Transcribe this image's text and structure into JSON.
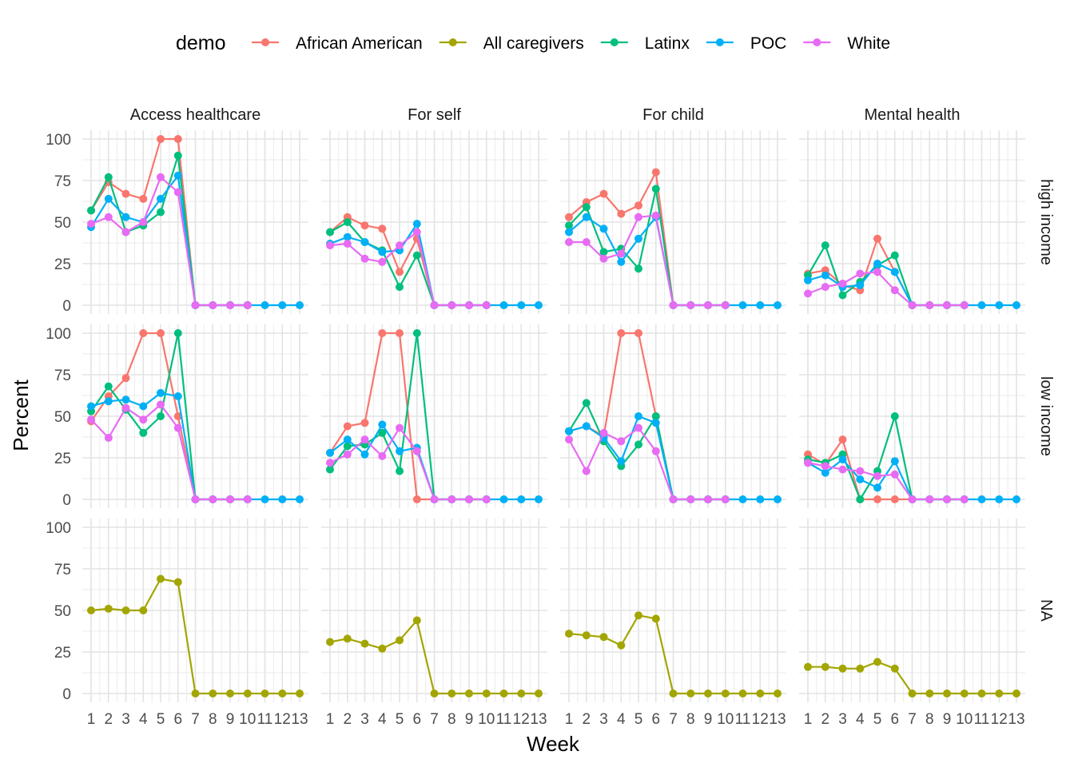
{
  "chart_data": {
    "type": "line",
    "xlabel": "Week",
    "ylabel": "Percent",
    "x": [
      1,
      2,
      3,
      4,
      5,
      6,
      7,
      8,
      9,
      10,
      11,
      12,
      13
    ],
    "ylim": [
      0,
      100
    ],
    "yticks": [
      0,
      25,
      50,
      75,
      100
    ],
    "grid": true,
    "legend": {
      "title": "demo",
      "position": "top",
      "entries": [
        {
          "name": "African American",
          "color": "#F8766D"
        },
        {
          "name": "All caregivers",
          "color": "#A3A500"
        },
        {
          "name": "Latinx",
          "color": "#00BF7D"
        },
        {
          "name": "POC",
          "color": "#00B0F6"
        },
        {
          "name": "White",
          "color": "#E76BF3"
        }
      ]
    },
    "columns": [
      "Access healthcare",
      "For self",
      "For child",
      "Mental health"
    ],
    "rows": [
      "high income",
      "low income",
      "NA"
    ],
    "panels": [
      {
        "row": 0,
        "col": 0,
        "series": [
          {
            "name": "African American",
            "values": [
              57,
              74,
              67,
              64,
              100,
              100,
              0,
              0,
              0,
              0,
              null,
              null,
              null
            ]
          },
          {
            "name": "Latinx",
            "values": [
              57,
              77,
              44,
              48,
              56,
              90,
              0,
              0,
              0,
              0,
              null,
              null,
              null
            ]
          },
          {
            "name": "POC",
            "values": [
              47,
              64,
              53,
              50,
              64,
              78,
              0,
              0,
              0,
              0,
              0,
              0,
              0
            ]
          },
          {
            "name": "White",
            "values": [
              49,
              53,
              44,
              50,
              77,
              68,
              0,
              0,
              0,
              0,
              null,
              null,
              null
            ]
          }
        ]
      },
      {
        "row": 0,
        "col": 1,
        "series": [
          {
            "name": "African American",
            "values": [
              44,
              53,
              48,
              46,
              20,
              40,
              0,
              0,
              0,
              0,
              null,
              null,
              null
            ]
          },
          {
            "name": "Latinx",
            "values": [
              44,
              50,
              38,
              33,
              11,
              30,
              0,
              0,
              0,
              0,
              null,
              null,
              null
            ]
          },
          {
            "name": "POC",
            "values": [
              37,
              41,
              38,
              32,
              33,
              49,
              0,
              0,
              0,
              0,
              0,
              0,
              0
            ]
          },
          {
            "name": "White",
            "values": [
              36,
              37,
              28,
              26,
              36,
              44,
              0,
              0,
              0,
              0,
              null,
              null,
              null
            ]
          }
        ]
      },
      {
        "row": 0,
        "col": 2,
        "series": [
          {
            "name": "African American",
            "values": [
              53,
              62,
              67,
              55,
              60,
              80,
              0,
              0,
              0,
              0,
              null,
              null,
              null
            ]
          },
          {
            "name": "Latinx",
            "values": [
              48,
              59,
              32,
              34,
              22,
              70,
              0,
              0,
              0,
              0,
              null,
              null,
              null
            ]
          },
          {
            "name": "POC",
            "values": [
              44,
              53,
              46,
              26,
              40,
              53,
              0,
              0,
              0,
              0,
              0,
              0,
              0
            ]
          },
          {
            "name": "White",
            "values": [
              38,
              38,
              28,
              31,
              53,
              54,
              0,
              0,
              0,
              0,
              null,
              null,
              null
            ]
          }
        ]
      },
      {
        "row": 0,
        "col": 3,
        "series": [
          {
            "name": "African American",
            "values": [
              19,
              21,
              12,
              9,
              40,
              20,
              0,
              0,
              0,
              0,
              null,
              null,
              null
            ]
          },
          {
            "name": "Latinx",
            "values": [
              18,
              36,
              6,
              14,
              24,
              30,
              0,
              0,
              0,
              0,
              null,
              null,
              null
            ]
          },
          {
            "name": "POC",
            "values": [
              15,
              18,
              11,
              12,
              25,
              20,
              0,
              0,
              0,
              0,
              0,
              0,
              0
            ]
          },
          {
            "name": "White",
            "values": [
              7,
              11,
              13,
              19,
              20,
              9,
              0,
              0,
              0,
              0,
              null,
              null,
              null
            ]
          }
        ]
      },
      {
        "row": 1,
        "col": 0,
        "series": [
          {
            "name": "African American",
            "values": [
              47,
              62,
              73,
              100,
              100,
              50,
              0,
              0,
              0,
              0,
              null,
              null,
              null
            ]
          },
          {
            "name": "Latinx",
            "values": [
              53,
              68,
              54,
              40,
              50,
              100,
              0,
              0,
              0,
              0,
              null,
              null,
              null
            ]
          },
          {
            "name": "POC",
            "values": [
              56,
              59,
              60,
              56,
              64,
              62,
              0,
              0,
              0,
              0,
              0,
              0,
              0
            ]
          },
          {
            "name": "White",
            "values": [
              48,
              37,
              55,
              48,
              57,
              43,
              0,
              0,
              0,
              0,
              null,
              null,
              null
            ]
          }
        ]
      },
      {
        "row": 1,
        "col": 1,
        "series": [
          {
            "name": "African American",
            "values": [
              28,
              44,
              46,
              100,
              100,
              0,
              0,
              0,
              0,
              0,
              null,
              null,
              null
            ]
          },
          {
            "name": "Latinx",
            "values": [
              18,
              32,
              33,
              40,
              17,
              100,
              0,
              0,
              0,
              0,
              null,
              null,
              null
            ]
          },
          {
            "name": "POC",
            "values": [
              28,
              36,
              27,
              45,
              29,
              31,
              0,
              0,
              0,
              0,
              0,
              0,
              0
            ]
          },
          {
            "name": "White",
            "values": [
              22,
              27,
              36,
              26,
              43,
              29,
              0,
              0,
              0,
              0,
              null,
              null,
              null
            ]
          }
        ]
      },
      {
        "row": 1,
        "col": 2,
        "series": [
          {
            "name": "African American",
            "values": [
              41,
              44,
              38,
              100,
              100,
              50,
              0,
              0,
              0,
              0,
              null,
              null,
              null
            ]
          },
          {
            "name": "Latinx",
            "values": [
              41,
              58,
              35,
              20,
              33,
              50,
              0,
              0,
              0,
              0,
              null,
              null,
              null
            ]
          },
          {
            "name": "POC",
            "values": [
              41,
              44,
              37,
              23,
              50,
              46,
              0,
              0,
              0,
              0,
              0,
              0,
              0
            ]
          },
          {
            "name": "White",
            "values": [
              36,
              17,
              40,
              35,
              43,
              29,
              0,
              0,
              0,
              0,
              null,
              null,
              null
            ]
          }
        ]
      },
      {
        "row": 1,
        "col": 3,
        "series": [
          {
            "name": "African American",
            "values": [
              27,
              21,
              36,
              0,
              0,
              0,
              0,
              0,
              0,
              0,
              null,
              null,
              null
            ]
          },
          {
            "name": "Latinx",
            "values": [
              24,
              22,
              27,
              0,
              17,
              50,
              0,
              0,
              0,
              0,
              null,
              null,
              null
            ]
          },
          {
            "name": "POC",
            "values": [
              22,
              16,
              24,
              12,
              7,
              23,
              0,
              0,
              0,
              0,
              0,
              0,
              0
            ]
          },
          {
            "name": "White",
            "values": [
              22,
              20,
              18,
              17,
              14,
              15,
              0,
              0,
              0,
              0,
              null,
              null,
              null
            ]
          }
        ]
      },
      {
        "row": 2,
        "col": 0,
        "series": [
          {
            "name": "All caregivers",
            "values": [
              50,
              51,
              50,
              50,
              69,
              67,
              0,
              0,
              0,
              0,
              0,
              0,
              0
            ]
          }
        ]
      },
      {
        "row": 2,
        "col": 1,
        "series": [
          {
            "name": "All caregivers",
            "values": [
              31,
              33,
              30,
              27,
              32,
              44,
              0,
              0,
              0,
              0,
              0,
              0,
              0
            ]
          }
        ]
      },
      {
        "row": 2,
        "col": 2,
        "series": [
          {
            "name": "All caregivers",
            "values": [
              36,
              35,
              34,
              29,
              47,
              45,
              0,
              0,
              0,
              0,
              0,
              0,
              0
            ]
          }
        ]
      },
      {
        "row": 2,
        "col": 3,
        "series": [
          {
            "name": "All caregivers",
            "values": [
              16,
              16,
              15,
              15,
              19,
              15,
              0,
              0,
              0,
              0,
              0,
              0,
              0
            ]
          }
        ]
      }
    ]
  }
}
